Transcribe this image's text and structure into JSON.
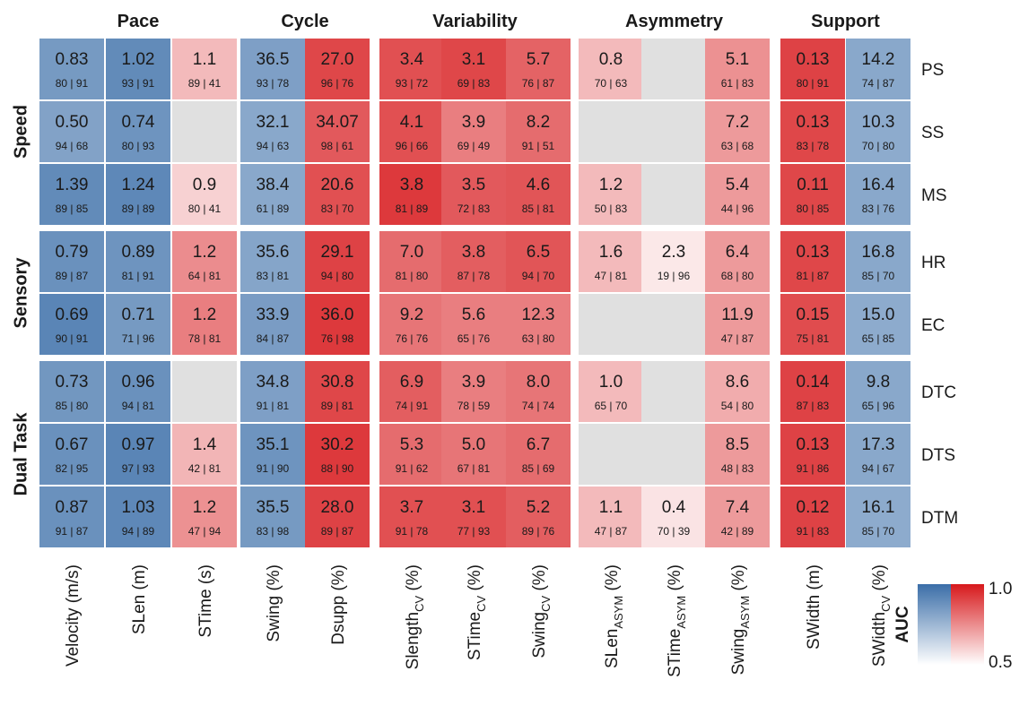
{
  "chart_data": {
    "type": "heatmap",
    "column_groups": [
      {
        "label": "Pace",
        "columns": [
          0,
          1,
          2
        ]
      },
      {
        "label": "Cycle",
        "columns": [
          3,
          4
        ]
      },
      {
        "label": "Variability",
        "columns": [
          5,
          6,
          7
        ]
      },
      {
        "label": "Asymmetry",
        "columns": [
          8,
          9,
          10
        ]
      },
      {
        "label": "Support",
        "columns": [
          11,
          12
        ]
      }
    ],
    "columns": [
      {
        "main": "Velocity (m/s)",
        "sub": "",
        "tail": ""
      },
      {
        "main": "SLen (m)",
        "sub": "",
        "tail": ""
      },
      {
        "main": "STime (s)",
        "sub": "",
        "tail": ""
      },
      {
        "main": "Swing (%)",
        "sub": "",
        "tail": ""
      },
      {
        "main": "Dsupp (%)",
        "sub": "",
        "tail": ""
      },
      {
        "main": "Slength",
        "sub": "CV",
        "tail": " (%)"
      },
      {
        "main": "STime",
        "sub": "CV",
        "tail": " (%)"
      },
      {
        "main": "Swing",
        "sub": "CV",
        "tail": " (%)"
      },
      {
        "main": "SLen",
        "sub": "ASYM",
        "tail": " (%)"
      },
      {
        "main": "STime",
        "sub": "ASYM",
        "tail": " (%)"
      },
      {
        "main": "Swing",
        "sub": "ASYM",
        "tail": " (%)"
      },
      {
        "main": "SWidth (m)",
        "sub": "",
        "tail": ""
      },
      {
        "main": "SWidth",
        "sub": "CV",
        "tail": " (%)"
      }
    ],
    "row_groups": [
      {
        "label": "Speed",
        "rows": [
          0,
          1,
          2
        ]
      },
      {
        "label": "Sensory",
        "rows": [
          3,
          4
        ]
      },
      {
        "label": "Dual Task",
        "rows": [
          5,
          6,
          7
        ]
      }
    ],
    "rows": [
      "PS",
      "SS",
      "MS",
      "HR",
      "EC",
      "DTC",
      "DTS",
      "DTM"
    ],
    "cells": [
      [
        {
          "value": "0.83",
          "sub": "80 | 91",
          "dir": "blue",
          "auc": 0.85
        },
        {
          "value": "1.02",
          "sub": "93 | 91",
          "dir": "blue",
          "auc": 0.9
        },
        {
          "value": "1.1",
          "sub": "89 | 41",
          "dir": "red",
          "auc": 0.65
        },
        {
          "value": "36.5",
          "sub": "93 | 78",
          "dir": "blue",
          "auc": 0.83
        },
        {
          "value": "27.0",
          "sub": "96 | 76",
          "dir": "red",
          "auc": 0.9
        },
        {
          "value": "3.4",
          "sub": "93 | 72",
          "dir": "red",
          "auc": 0.88
        },
        {
          "value": "3.1",
          "sub": "69 | 83",
          "dir": "red",
          "auc": 0.9
        },
        {
          "value": "5.7",
          "sub": "76 | 87",
          "dir": "red",
          "auc": 0.84
        },
        {
          "value": "0.8",
          "sub": "70 | 63",
          "dir": "red",
          "auc": 0.65
        },
        null,
        {
          "value": "5.1",
          "sub": "61 | 83",
          "dir": "red",
          "auc": 0.74
        },
        {
          "value": "0.13",
          "sub": "80 | 91",
          "dir": "red",
          "auc": 0.91
        },
        {
          "value": "14.2",
          "sub": "74 | 87",
          "dir": "blue",
          "auc": 0.8
        }
      ],
      [
        {
          "value": "0.50",
          "sub": "94 | 68",
          "dir": "blue",
          "auc": 0.82
        },
        {
          "value": "0.74",
          "sub": "80 | 93",
          "dir": "blue",
          "auc": 0.87
        },
        null,
        {
          "value": "32.1",
          "sub": "94 | 63",
          "dir": "blue",
          "auc": 0.8
        },
        {
          "value": "34.07",
          "sub": "98 | 61",
          "dir": "red",
          "auc": 0.86
        },
        {
          "value": "4.1",
          "sub": "96 | 66",
          "dir": "red",
          "auc": 0.88
        },
        {
          "value": "3.9",
          "sub": "69 | 49",
          "dir": "red",
          "auc": 0.78
        },
        {
          "value": "8.2",
          "sub": "91 | 51",
          "dir": "red",
          "auc": 0.82
        },
        null,
        null,
        {
          "value": "7.2",
          "sub": "63 | 68",
          "dir": "red",
          "auc": 0.72
        },
        {
          "value": "0.13",
          "sub": "83 | 78",
          "dir": "red",
          "auc": 0.9
        },
        {
          "value": "10.3",
          "sub": "70 | 80",
          "dir": "blue",
          "auc": 0.79
        }
      ],
      [
        {
          "value": "1.39",
          "sub": "89 | 85",
          "dir": "blue",
          "auc": 0.9
        },
        {
          "value": "1.24",
          "sub": "89 | 89",
          "dir": "blue",
          "auc": 0.91
        },
        {
          "value": "0.9",
          "sub": "80 | 41",
          "dir": "red",
          "auc": 0.6
        },
        {
          "value": "38.4",
          "sub": "61 | 89",
          "dir": "blue",
          "auc": 0.8
        },
        {
          "value": "20.6",
          "sub": "83 | 70",
          "dir": "red",
          "auc": 0.88
        },
        {
          "value": "3.8",
          "sub": "81 | 89",
          "dir": "red",
          "auc": 0.93
        },
        {
          "value": "3.5",
          "sub": "72 | 83",
          "dir": "red",
          "auc": 0.86
        },
        {
          "value": "4.6",
          "sub": "85 | 81",
          "dir": "red",
          "auc": 0.87
        },
        {
          "value": "1.2",
          "sub": "50 | 83",
          "dir": "red",
          "auc": 0.65
        },
        null,
        {
          "value": "5.4",
          "sub": "44 | 96",
          "dir": "red",
          "auc": 0.72
        },
        {
          "value": "0.11",
          "sub": "80 | 85",
          "dir": "red",
          "auc": 0.9
        },
        {
          "value": "16.4",
          "sub": "83 | 76",
          "dir": "blue",
          "auc": 0.8
        }
      ],
      [
        {
          "value": "0.79",
          "sub": "89 | 87",
          "dir": "blue",
          "auc": 0.88
        },
        {
          "value": "0.89",
          "sub": "81 | 91",
          "dir": "blue",
          "auc": 0.87
        },
        {
          "value": "1.2",
          "sub": "64 | 81",
          "dir": "red",
          "auc": 0.75
        },
        {
          "value": "35.6",
          "sub": "83 | 81",
          "dir": "blue",
          "auc": 0.81
        },
        {
          "value": "29.1",
          "sub": "94 | 80",
          "dir": "red",
          "auc": 0.91
        },
        {
          "value": "7.0",
          "sub": "81 | 80",
          "dir": "red",
          "auc": 0.82
        },
        {
          "value": "3.8",
          "sub": "87 | 78",
          "dir": "red",
          "auc": 0.85
        },
        {
          "value": "6.5",
          "sub": "94 | 70",
          "dir": "red",
          "auc": 0.87
        },
        {
          "value": "1.6",
          "sub": "47 | 81",
          "dir": "red",
          "auc": 0.65
        },
        {
          "value": "2.3",
          "sub": "19 | 96",
          "dir": "red",
          "auc": 0.55
        },
        {
          "value": "6.4",
          "sub": "68 | 80",
          "dir": "red",
          "auc": 0.72
        },
        {
          "value": "0.13",
          "sub": "81 | 87",
          "dir": "red",
          "auc": 0.9
        },
        {
          "value": "16.8",
          "sub": "85 | 70",
          "dir": "blue",
          "auc": 0.8
        }
      ],
      [
        {
          "value": "0.69",
          "sub": "90 | 91",
          "dir": "blue",
          "auc": 0.92
        },
        {
          "value": "0.71",
          "sub": "71 | 96",
          "dir": "blue",
          "auc": 0.85
        },
        {
          "value": "1.2",
          "sub": "78 | 81",
          "dir": "red",
          "auc": 0.78
        },
        {
          "value": "33.9",
          "sub": "84 | 87",
          "dir": "blue",
          "auc": 0.84
        },
        {
          "value": "36.0",
          "sub": "76 | 98",
          "dir": "red",
          "auc": 0.93
        },
        {
          "value": "9.2",
          "sub": "76 | 76",
          "dir": "red",
          "auc": 0.8
        },
        {
          "value": "5.6",
          "sub": "65 | 76",
          "dir": "red",
          "auc": 0.78
        },
        {
          "value": "12.3",
          "sub": "63 | 80",
          "dir": "red",
          "auc": 0.78
        },
        null,
        null,
        {
          "value": "11.9",
          "sub": "47 | 87",
          "dir": "red",
          "auc": 0.72
        },
        {
          "value": "0.15",
          "sub": "75 | 81",
          "dir": "red",
          "auc": 0.89
        },
        {
          "value": "15.0",
          "sub": "65 | 85",
          "dir": "blue",
          "auc": 0.79
        }
      ],
      [
        {
          "value": "0.73",
          "sub": "85 | 80",
          "dir": "blue",
          "auc": 0.86
        },
        {
          "value": "0.96",
          "sub": "94 | 81",
          "dir": "blue",
          "auc": 0.88
        },
        null,
        {
          "value": "34.8",
          "sub": "91 | 81",
          "dir": "blue",
          "auc": 0.83
        },
        {
          "value": "30.8",
          "sub": "89 | 81",
          "dir": "red",
          "auc": 0.9
        },
        {
          "value": "6.9",
          "sub": "74 | 91",
          "dir": "red",
          "auc": 0.85
        },
        {
          "value": "3.9",
          "sub": "78 | 59",
          "dir": "red",
          "auc": 0.78
        },
        {
          "value": "8.0",
          "sub": "74 | 74",
          "dir": "red",
          "auc": 0.8
        },
        {
          "value": "1.0",
          "sub": "65 | 70",
          "dir": "red",
          "auc": 0.65
        },
        null,
        {
          "value": "8.6",
          "sub": "54 | 80",
          "dir": "red",
          "auc": 0.68
        },
        {
          "value": "0.14",
          "sub": "87 | 83",
          "dir": "red",
          "auc": 0.91
        },
        {
          "value": "9.8",
          "sub": "65 | 96",
          "dir": "blue",
          "auc": 0.8
        }
      ],
      [
        {
          "value": "0.67",
          "sub": "82 | 95",
          "dir": "blue",
          "auc": 0.88
        },
        {
          "value": "0.97",
          "sub": "97 | 93",
          "dir": "blue",
          "auc": 0.92
        },
        {
          "value": "1.4",
          "sub": "42 | 81",
          "dir": "red",
          "auc": 0.66
        },
        {
          "value": "35.1",
          "sub": "91 | 90",
          "dir": "blue",
          "auc": 0.87
        },
        {
          "value": "30.2",
          "sub": "88 | 90",
          "dir": "red",
          "auc": 0.93
        },
        {
          "value": "5.3",
          "sub": "91 | 62",
          "dir": "red",
          "auc": 0.82
        },
        {
          "value": "5.0",
          "sub": "67 | 81",
          "dir": "red",
          "auc": 0.8
        },
        {
          "value": "6.7",
          "sub": "85 | 69",
          "dir": "red",
          "auc": 0.82
        },
        null,
        null,
        {
          "value": "8.5",
          "sub": "48 | 83",
          "dir": "red",
          "auc": 0.72
        },
        {
          "value": "0.13",
          "sub": "91 | 86",
          "dir": "red",
          "auc": 0.91
        },
        {
          "value": "17.3",
          "sub": "94 | 67",
          "dir": "blue",
          "auc": 0.8
        }
      ],
      [
        {
          "value": "0.87",
          "sub": "91 | 87",
          "dir": "blue",
          "auc": 0.88
        },
        {
          "value": "1.03",
          "sub": "94 | 89",
          "dir": "blue",
          "auc": 0.91
        },
        {
          "value": "1.2",
          "sub": "47 | 94",
          "dir": "red",
          "auc": 0.74
        },
        {
          "value": "35.5",
          "sub": "83 | 98",
          "dir": "blue",
          "auc": 0.85
        },
        {
          "value": "28.0",
          "sub": "89 | 87",
          "dir": "red",
          "auc": 0.91
        },
        {
          "value": "3.7",
          "sub": "91 | 78",
          "dir": "red",
          "auc": 0.88
        },
        {
          "value": "3.1",
          "sub": "77 | 93",
          "dir": "red",
          "auc": 0.88
        },
        {
          "value": "5.2",
          "sub": "89 | 76",
          "dir": "red",
          "auc": 0.85
        },
        {
          "value": "1.1",
          "sub": "47 | 87",
          "dir": "red",
          "auc": 0.65
        },
        {
          "value": "0.4",
          "sub": "70 | 39",
          "dir": "red",
          "auc": 0.56
        },
        {
          "value": "7.4",
          "sub": "42 | 89",
          "dir": "red",
          "auc": 0.72
        },
        {
          "value": "0.12",
          "sub": "91 | 83",
          "dir": "red",
          "auc": 0.91
        },
        {
          "value": "16.1",
          "sub": "85 | 70",
          "dir": "blue",
          "auc": 0.79
        }
      ]
    ],
    "legend": {
      "title": "AUC",
      "min": 0.5,
      "max": 1.0,
      "min_label": "0.5",
      "max_label": "1.0",
      "placement": "bottom-right"
    },
    "colors": {
      "blue_end": "#3b6ea8",
      "red_end": "#d7191c",
      "low_end": "#ffffff",
      "missing": "#e0e0e0"
    }
  }
}
